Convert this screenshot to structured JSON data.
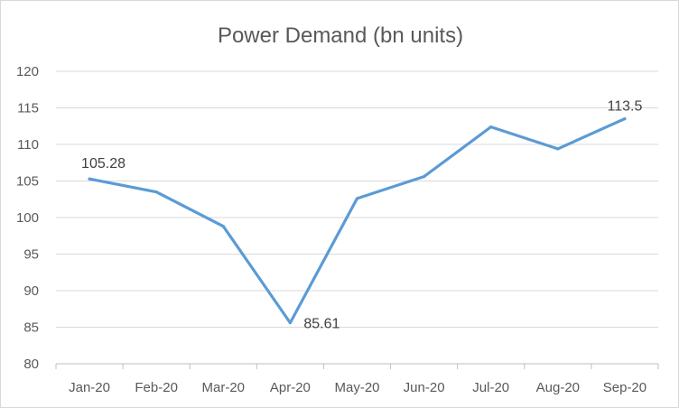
{
  "chart_data": {
    "type": "line",
    "title": "Power Demand (bn units)",
    "xlabel": "",
    "ylabel": "",
    "categories": [
      "Jan-20",
      "Feb-20",
      "Mar-20",
      "Apr-20",
      "May-20",
      "Jun-20",
      "Jul-20",
      "Aug-20",
      "Sep-20"
    ],
    "series": [
      {
        "values": [
          105.28,
          103.5,
          98.8,
          85.61,
          102.6,
          105.6,
          112.4,
          109.4,
          113.5
        ],
        "color": "#5b9bd5"
      }
    ],
    "data_labels": [
      {
        "index": 0,
        "text": "105.28"
      },
      {
        "index": 3,
        "text": "85.61"
      },
      {
        "index": 8,
        "text": "113.5"
      }
    ],
    "ylim": [
      80,
      120
    ],
    "yticks": [
      80,
      85,
      90,
      95,
      100,
      105,
      110,
      115,
      120
    ],
    "grid": true,
    "legend": "none"
  }
}
